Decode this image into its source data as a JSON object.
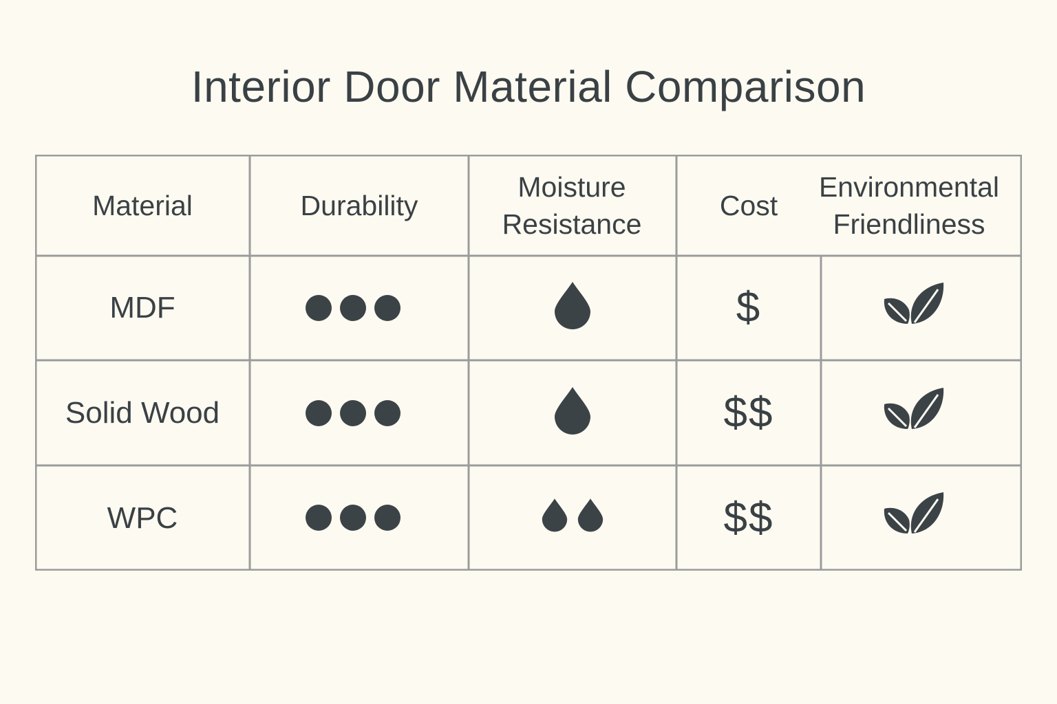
{
  "chart_data": {
    "type": "table",
    "title": "Interior Door Material Comparison",
    "columns": [
      "Material",
      "Durability",
      "Moisture Resistance",
      "Cost",
      "Environmental Friendliness"
    ],
    "rows": [
      {
        "material": "MDF",
        "durability": 3,
        "moisture_resistance": 1,
        "cost": "$",
        "environmental_friendliness": 2
      },
      {
        "material": "Solid Wood",
        "durability": 3,
        "moisture_resistance": 1,
        "cost": "$$",
        "environmental_friendliness": 2
      },
      {
        "material": "WPC",
        "durability": 3,
        "moisture_resistance": 2,
        "cost": "$$",
        "environmental_friendliness": 2
      }
    ],
    "icons": {
      "durability": "dot-icon",
      "moisture_resistance": "water-drop-icon",
      "environmental_friendliness": "leaf-icon"
    },
    "colors": {
      "background": "#fdfaf1",
      "text": "#3a4145",
      "icon": "#3c4347",
      "grid": "#9a9c9c"
    }
  }
}
